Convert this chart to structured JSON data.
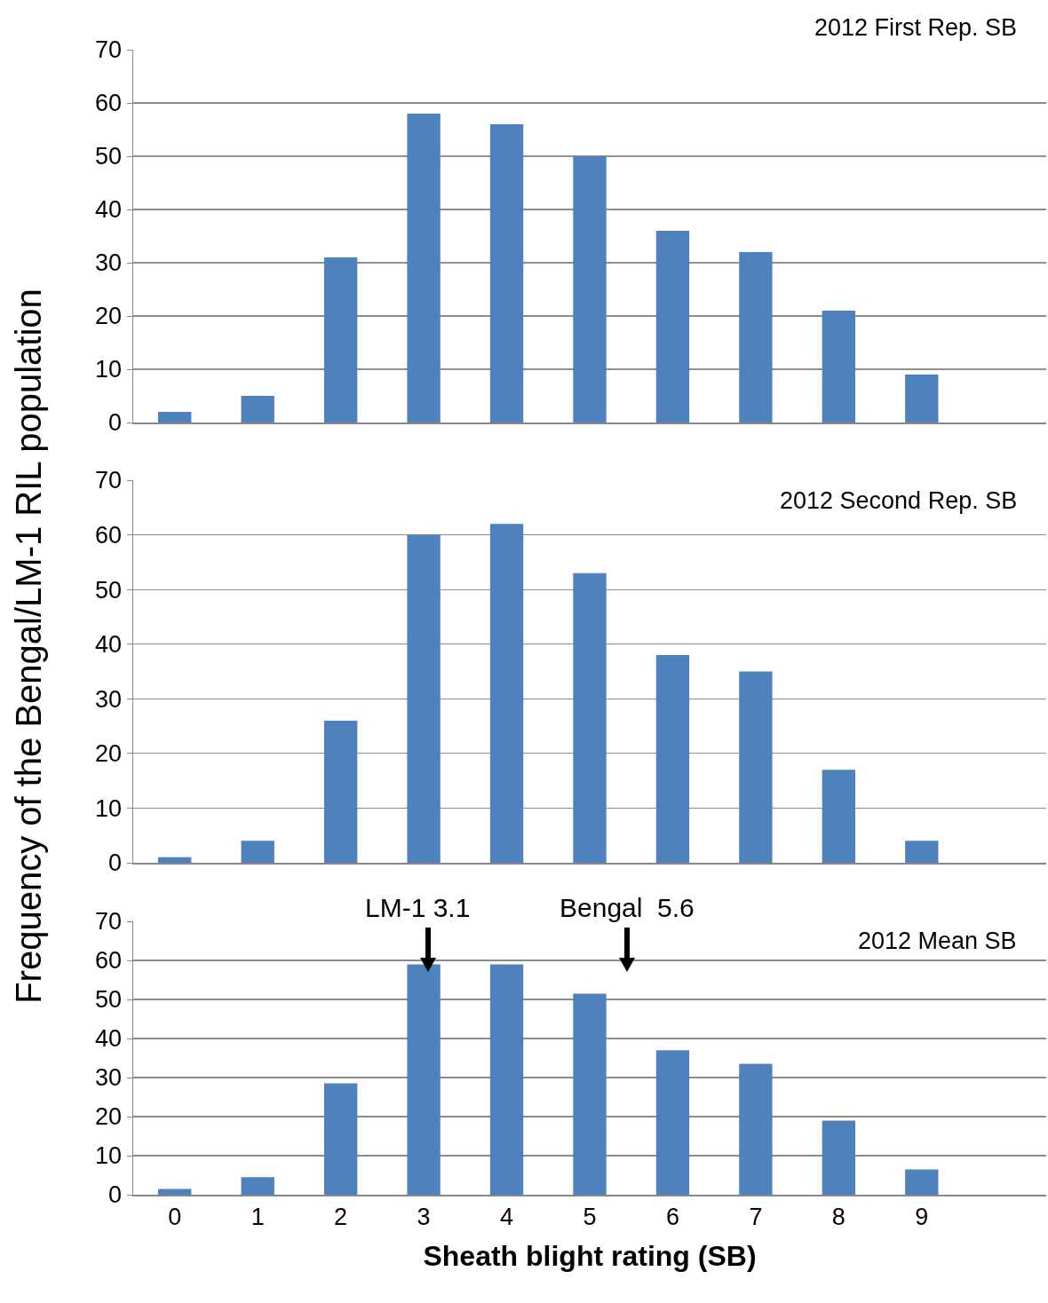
{
  "chart_data": [
    {
      "type": "bar",
      "title": "2012 First Rep. SB",
      "x": [
        0,
        1,
        2,
        3,
        4,
        5,
        6,
        7,
        8,
        9
      ],
      "values": [
        2,
        5,
        31,
        58,
        56,
        50,
        36,
        32,
        21,
        9
      ],
      "color": "#4f81bd",
      "xlim": [
        -0.5,
        10.5
      ],
      "xticks": [
        0,
        1,
        2,
        3,
        4,
        5,
        6,
        7,
        8,
        9
      ],
      "ylim": [
        0,
        70
      ],
      "yticks": [
        0,
        10,
        20,
        30,
        40,
        50,
        60,
        70
      ],
      "grid": "y",
      "tick_labels": "y"
    },
    {
      "type": "bar",
      "title": "2012 Second Rep. SB",
      "ylabel": "Frequency of the Bengal/LM-1 RIL population",
      "x": [
        0,
        1,
        2,
        3,
        4,
        5,
        6,
        7,
        8,
        9
      ],
      "values": [
        1,
        4,
        26,
        60,
        62,
        53,
        38,
        35,
        17,
        4
      ],
      "color": "#4f81bd",
      "xlim": [
        -0.5,
        10.5
      ],
      "xticks": [
        0,
        1,
        2,
        3,
        4,
        5,
        6,
        7,
        8,
        9
      ],
      "ylim": [
        0,
        70
      ],
      "yticks": [
        0,
        10,
        20,
        30,
        40,
        50,
        60,
        70
      ],
      "grid": "y",
      "tick_labels": "y"
    },
    {
      "type": "bar",
      "title": "2012 Mean SB",
      "xlabel": "Sheath blight rating (SB)",
      "x": [
        0,
        1,
        2,
        3,
        4,
        5,
        6,
        7,
        8,
        9
      ],
      "values": [
        1.5,
        4.5,
        28.5,
        59,
        59,
        51.5,
        37,
        33.5,
        19,
        6.5
      ],
      "color": "#4f81bd",
      "xlim": [
        -0.5,
        10.5
      ],
      "xticks": [
        0,
        1,
        2,
        3,
        4,
        5,
        6,
        7,
        8,
        9
      ],
      "ylim": [
        0,
        70
      ],
      "yticks": [
        0,
        10,
        20,
        30,
        40,
        50,
        60,
        70
      ],
      "grid": "y",
      "annotations": [
        "LM-1 3.1",
        "Bengal  5.6"
      ]
    }
  ]
}
